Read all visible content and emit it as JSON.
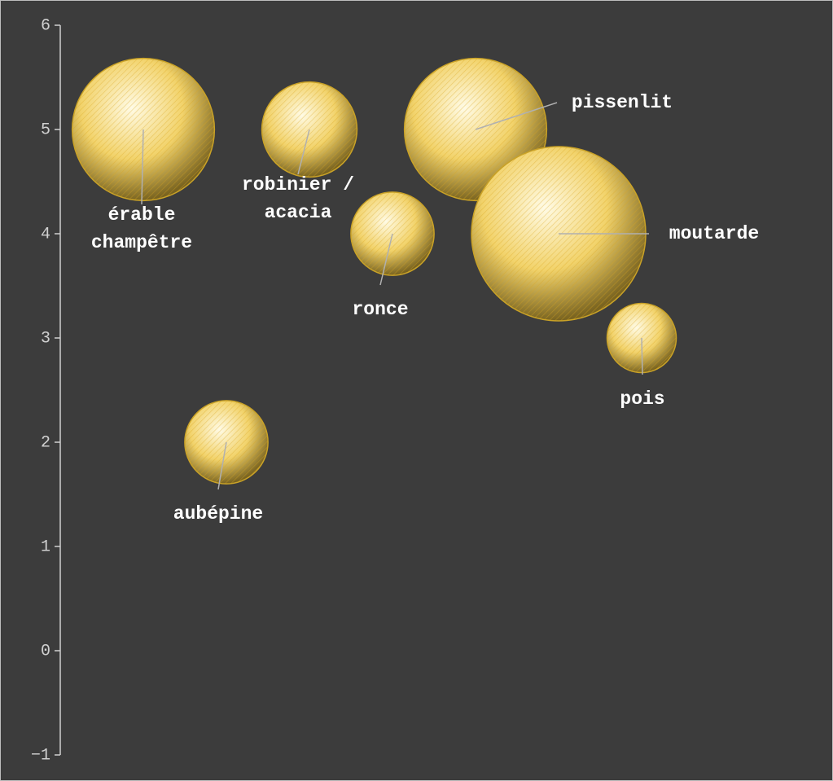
{
  "chart_data": {
    "type": "bubble",
    "categories": [
      "érable champêtre",
      "aubépine",
      "robinier / acacia",
      "ronce",
      "pissenlit",
      "moutarde",
      "pois"
    ],
    "values": [
      5,
      2,
      5,
      4,
      5,
      4,
      3
    ],
    "sizes": [
      76,
      26,
      34,
      26,
      76,
      114,
      18
    ],
    "color": "#f2d36b",
    "ylim": [
      -1,
      6
    ],
    "yticks": [
      {
        "value": -1,
        "label": "−1"
      },
      0,
      1,
      2,
      3,
      4,
      5,
      6
    ]
  }
}
